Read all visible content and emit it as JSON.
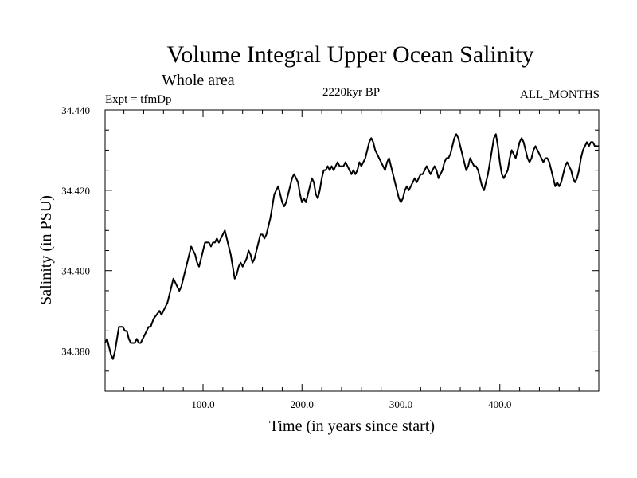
{
  "chart_data": {
    "type": "line",
    "title": "Volume Integral Upper Ocean Salinity",
    "subtitle": "Whole area",
    "expt_label": "Expt = tfmDp",
    "period_label": "2220kyr BP",
    "months_label": "ALL_MONTHS",
    "xlabel": "Time (in years since start)",
    "ylabel": "Salinity (in PSU)",
    "xlim": [
      1,
      500
    ],
    "ylim": [
      34.37,
      34.44
    ],
    "x_ticks": [
      100,
      200,
      300,
      400
    ],
    "x_tick_labels": [
      "100.0",
      "200.0",
      "300.0",
      "400.0"
    ],
    "y_ticks": [
      34.38,
      34.4,
      34.42,
      34.44
    ],
    "y_tick_labels": [
      "34.380",
      "34.400",
      "34.420",
      "34.440"
    ],
    "series": [
      {
        "name": "salinity",
        "color": "#000000",
        "points": [
          [
            1,
            34.382
          ],
          [
            3,
            34.383
          ],
          [
            5,
            34.381
          ],
          [
            7,
            34.379
          ],
          [
            9,
            34.378
          ],
          [
            11,
            34.38
          ],
          [
            13,
            34.383
          ],
          [
            15,
            34.386
          ],
          [
            17,
            34.386
          ],
          [
            19,
            34.386
          ],
          [
            21,
            34.385
          ],
          [
            23,
            34.385
          ],
          [
            25,
            34.383
          ],
          [
            27,
            34.382
          ],
          [
            29,
            34.382
          ],
          [
            31,
            34.382
          ],
          [
            33,
            34.383
          ],
          [
            35,
            34.382
          ],
          [
            37,
            34.382
          ],
          [
            39,
            34.383
          ],
          [
            41,
            34.384
          ],
          [
            43,
            34.385
          ],
          [
            45,
            34.386
          ],
          [
            47,
            34.386
          ],
          [
            50,
            34.388
          ],
          [
            53,
            34.389
          ],
          [
            56,
            34.39
          ],
          [
            58,
            34.389
          ],
          [
            60,
            34.39
          ],
          [
            62,
            34.391
          ],
          [
            64,
            34.392
          ],
          [
            66,
            34.394
          ],
          [
            68,
            34.396
          ],
          [
            70,
            34.398
          ],
          [
            72,
            34.397
          ],
          [
            74,
            34.396
          ],
          [
            76,
            34.395
          ],
          [
            78,
            34.396
          ],
          [
            80,
            34.398
          ],
          [
            82,
            34.4
          ],
          [
            84,
            34.402
          ],
          [
            86,
            34.404
          ],
          [
            88,
            34.406
          ],
          [
            90,
            34.405
          ],
          [
            92,
            34.404
          ],
          [
            94,
            34.402
          ],
          [
            96,
            34.401
          ],
          [
            98,
            34.403
          ],
          [
            100,
            34.405
          ],
          [
            102,
            34.407
          ],
          [
            104,
            34.407
          ],
          [
            106,
            34.407
          ],
          [
            108,
            34.406
          ],
          [
            110,
            34.407
          ],
          [
            112,
            34.407
          ],
          [
            114,
            34.408
          ],
          [
            116,
            34.407
          ],
          [
            118,
            34.408
          ],
          [
            120,
            34.409
          ],
          [
            122,
            34.41
          ],
          [
            124,
            34.408
          ],
          [
            126,
            34.406
          ],
          [
            128,
            34.404
          ],
          [
            130,
            34.401
          ],
          [
            132,
            34.398
          ],
          [
            134,
            34.399
          ],
          [
            136,
            34.401
          ],
          [
            138,
            34.402
          ],
          [
            140,
            34.401
          ],
          [
            142,
            34.402
          ],
          [
            144,
            34.403
          ],
          [
            146,
            34.405
          ],
          [
            148,
            34.404
          ],
          [
            150,
            34.402
          ],
          [
            152,
            34.403
          ],
          [
            154,
            34.405
          ],
          [
            156,
            34.407
          ],
          [
            158,
            34.409
          ],
          [
            160,
            34.409
          ],
          [
            162,
            34.408
          ],
          [
            164,
            34.409
          ],
          [
            166,
            34.411
          ],
          [
            168,
            34.413
          ],
          [
            170,
            34.416
          ],
          [
            172,
            34.419
          ],
          [
            174,
            34.42
          ],
          [
            176,
            34.421
          ],
          [
            178,
            34.419
          ],
          [
            180,
            34.417
          ],
          [
            182,
            34.416
          ],
          [
            184,
            34.417
          ],
          [
            186,
            34.419
          ],
          [
            188,
            34.421
          ],
          [
            190,
            34.423
          ],
          [
            192,
            34.424
          ],
          [
            194,
            34.423
          ],
          [
            196,
            34.422
          ],
          [
            198,
            34.419
          ],
          [
            200,
            34.417
          ],
          [
            202,
            34.418
          ],
          [
            204,
            34.417
          ],
          [
            206,
            34.419
          ],
          [
            208,
            34.421
          ],
          [
            210,
            34.423
          ],
          [
            212,
            34.422
          ],
          [
            214,
            34.419
          ],
          [
            216,
            34.418
          ],
          [
            218,
            34.42
          ],
          [
            220,
            34.423
          ],
          [
            222,
            34.425
          ],
          [
            224,
            34.425
          ],
          [
            226,
            34.426
          ],
          [
            228,
            34.425
          ],
          [
            230,
            34.426
          ],
          [
            232,
            34.425
          ],
          [
            234,
            34.426
          ],
          [
            236,
            34.427
          ],
          [
            238,
            34.426
          ],
          [
            240,
            34.426
          ],
          [
            242,
            34.426
          ],
          [
            244,
            34.427
          ],
          [
            246,
            34.426
          ],
          [
            248,
            34.425
          ],
          [
            250,
            34.424
          ],
          [
            252,
            34.425
          ],
          [
            254,
            34.424
          ],
          [
            256,
            34.425
          ],
          [
            258,
            34.427
          ],
          [
            260,
            34.426
          ],
          [
            262,
            34.427
          ],
          [
            264,
            34.428
          ],
          [
            266,
            34.43
          ],
          [
            268,
            34.432
          ],
          [
            270,
            34.433
          ],
          [
            272,
            34.432
          ],
          [
            274,
            34.43
          ],
          [
            276,
            34.429
          ],
          [
            278,
            34.428
          ],
          [
            280,
            34.427
          ],
          [
            282,
            34.426
          ],
          [
            284,
            34.425
          ],
          [
            286,
            34.427
          ],
          [
            288,
            34.428
          ],
          [
            290,
            34.426
          ],
          [
            292,
            34.424
          ],
          [
            294,
            34.422
          ],
          [
            296,
            34.42
          ],
          [
            298,
            34.418
          ],
          [
            300,
            34.417
          ],
          [
            302,
            34.418
          ],
          [
            304,
            34.42
          ],
          [
            306,
            34.421
          ],
          [
            308,
            34.42
          ],
          [
            310,
            34.421
          ],
          [
            312,
            34.422
          ],
          [
            314,
            34.423
          ],
          [
            316,
            34.422
          ],
          [
            318,
            34.423
          ],
          [
            320,
            34.424
          ],
          [
            322,
            34.424
          ],
          [
            324,
            34.425
          ],
          [
            326,
            34.426
          ],
          [
            328,
            34.425
          ],
          [
            330,
            34.424
          ],
          [
            332,
            34.425
          ],
          [
            334,
            34.426
          ],
          [
            336,
            34.425
          ],
          [
            338,
            34.423
          ],
          [
            340,
            34.424
          ],
          [
            342,
            34.425
          ],
          [
            344,
            34.427
          ],
          [
            346,
            34.428
          ],
          [
            348,
            34.428
          ],
          [
            350,
            34.429
          ],
          [
            352,
            34.431
          ],
          [
            354,
            34.433
          ],
          [
            356,
            34.434
          ],
          [
            358,
            34.433
          ],
          [
            360,
            34.431
          ],
          [
            362,
            34.429
          ],
          [
            364,
            34.427
          ],
          [
            366,
            34.425
          ],
          [
            368,
            34.426
          ],
          [
            370,
            34.428
          ],
          [
            372,
            34.427
          ],
          [
            374,
            34.426
          ],
          [
            376,
            34.426
          ],
          [
            378,
            34.425
          ],
          [
            380,
            34.423
          ],
          [
            382,
            34.421
          ],
          [
            384,
            34.42
          ],
          [
            386,
            34.422
          ],
          [
            388,
            34.424
          ],
          [
            390,
            34.427
          ],
          [
            392,
            34.43
          ],
          [
            394,
            34.433
          ],
          [
            396,
            34.434
          ],
          [
            398,
            34.431
          ],
          [
            400,
            34.427
          ],
          [
            402,
            34.424
          ],
          [
            404,
            34.423
          ],
          [
            406,
            34.424
          ],
          [
            408,
            34.425
          ],
          [
            410,
            34.428
          ],
          [
            412,
            34.43
          ],
          [
            414,
            34.429
          ],
          [
            416,
            34.428
          ],
          [
            418,
            34.43
          ],
          [
            420,
            34.432
          ],
          [
            422,
            34.433
          ],
          [
            424,
            34.432
          ],
          [
            426,
            34.43
          ],
          [
            428,
            34.428
          ],
          [
            430,
            34.427
          ],
          [
            432,
            34.428
          ],
          [
            434,
            34.43
          ],
          [
            436,
            34.431
          ],
          [
            438,
            34.43
          ],
          [
            440,
            34.429
          ],
          [
            442,
            34.428
          ],
          [
            444,
            34.427
          ],
          [
            446,
            34.428
          ],
          [
            448,
            34.428
          ],
          [
            450,
            34.427
          ],
          [
            452,
            34.425
          ],
          [
            454,
            34.423
          ],
          [
            456,
            34.421
          ],
          [
            458,
            34.422
          ],
          [
            460,
            34.421
          ],
          [
            462,
            34.422
          ],
          [
            464,
            34.424
          ],
          [
            466,
            34.426
          ],
          [
            468,
            34.427
          ],
          [
            470,
            34.426
          ],
          [
            472,
            34.425
          ],
          [
            474,
            34.423
          ],
          [
            476,
            34.422
          ],
          [
            478,
            34.423
          ],
          [
            480,
            34.425
          ],
          [
            482,
            34.428
          ],
          [
            484,
            34.43
          ],
          [
            486,
            34.431
          ],
          [
            488,
            34.432
          ],
          [
            490,
            34.431
          ],
          [
            492,
            34.432
          ],
          [
            494,
            34.432
          ],
          [
            496,
            34.431
          ],
          [
            498,
            34.431
          ],
          [
            500,
            34.431
          ]
        ]
      }
    ]
  }
}
